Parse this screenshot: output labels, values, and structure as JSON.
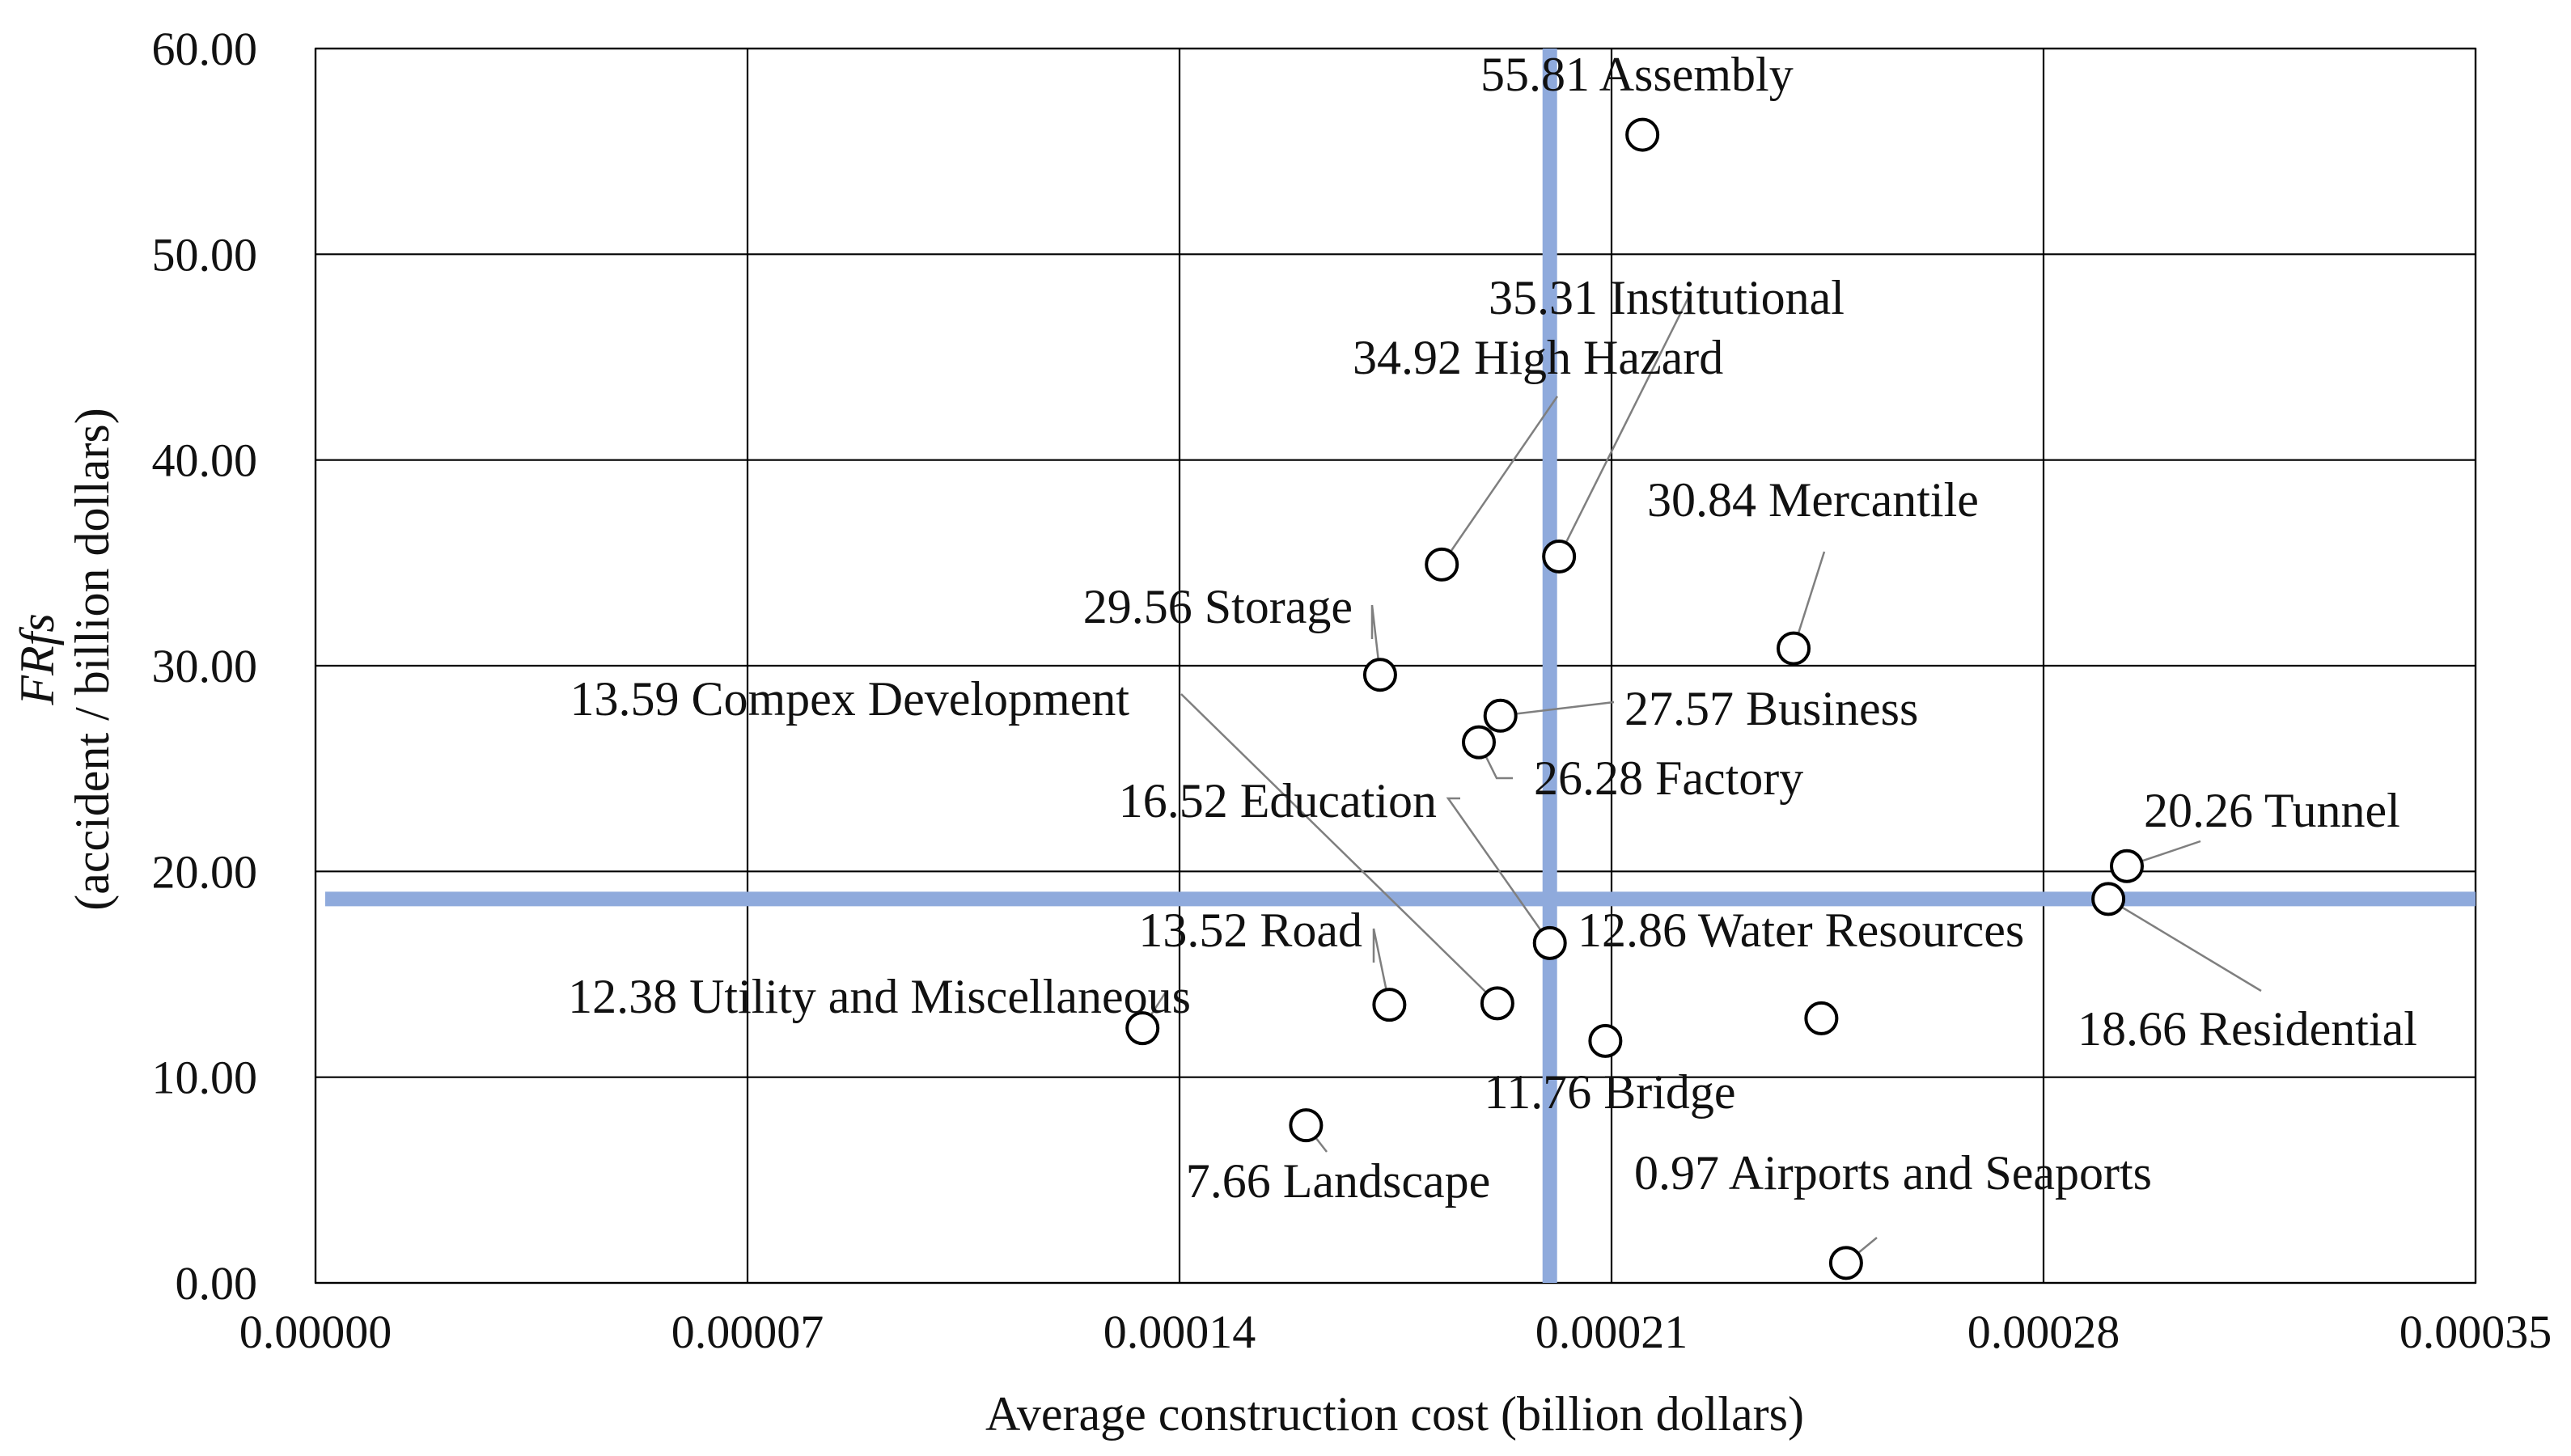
{
  "chart_data": {
    "type": "scatter",
    "xlabel": "Average construction cost (billion dollars)",
    "ylabel_main": "FRfs",
    "ylabel_sub": "(accident / billion dollars)",
    "xlim": [
      0,
      0.00035
    ],
    "ylim": [
      0,
      60
    ],
    "x_ticks": [
      0,
      7e-05,
      0.00014,
      0.00021,
      0.00028,
      0.00035
    ],
    "x_tick_labels": [
      "0.00000",
      "0.00007",
      "0.00014",
      "0.00021",
      "0.00028",
      "0.00035"
    ],
    "y_ticks": [
      0,
      10,
      20,
      30,
      40,
      50,
      60
    ],
    "y_tick_labels": [
      "0.00",
      "10.00",
      "20.00",
      "30.00",
      "40.00",
      "50.00",
      "60.00"
    ],
    "grid": true,
    "reference_lines": {
      "x": 0.0002,
      "y": 18.66,
      "color": "#8faadc"
    },
    "points": [
      {
        "label": "55.81 Assembly",
        "x": 0.000215,
        "y": 55.81
      },
      {
        "label": "35.31 Institutional",
        "x": 0.0002015,
        "y": 35.31
      },
      {
        "label": "34.92 High Hazard",
        "x": 0.0001825,
        "y": 34.92
      },
      {
        "label": "30.84 Mercantile",
        "x": 0.0002395,
        "y": 30.84
      },
      {
        "label": "29.56 Storage",
        "x": 0.0001725,
        "y": 29.56
      },
      {
        "label": "27.57 Business",
        "x": 0.000192,
        "y": 27.57
      },
      {
        "label": "26.28 Factory",
        "x": 0.0001885,
        "y": 26.28
      },
      {
        "label": "20.26 Tunnel",
        "x": 0.0002935,
        "y": 20.26
      },
      {
        "label": "18.66 Residential",
        "x": 0.0002905,
        "y": 18.66
      },
      {
        "label": "16.52 Education",
        "x": 0.0002,
        "y": 16.52
      },
      {
        "label": "13.59 Compex Development",
        "x": 0.0001915,
        "y": 13.59
      },
      {
        "label": "13.52 Road",
        "x": 0.000174,
        "y": 13.52
      },
      {
        "label": "12.86 Water Resources",
        "x": 0.000244,
        "y": 12.86
      },
      {
        "label": "12.38 Utility and Miscellaneous",
        "x": 0.000134,
        "y": 12.38
      },
      {
        "label": "11.76 Bridge",
        "x": 0.000209,
        "y": 11.76
      },
      {
        "label": "7.66 Landscape",
        "x": 0.0001605,
        "y": 7.66
      },
      {
        "label": "0.97 Airports and Seaports",
        "x": 0.000248,
        "y": 0.97
      }
    ]
  }
}
